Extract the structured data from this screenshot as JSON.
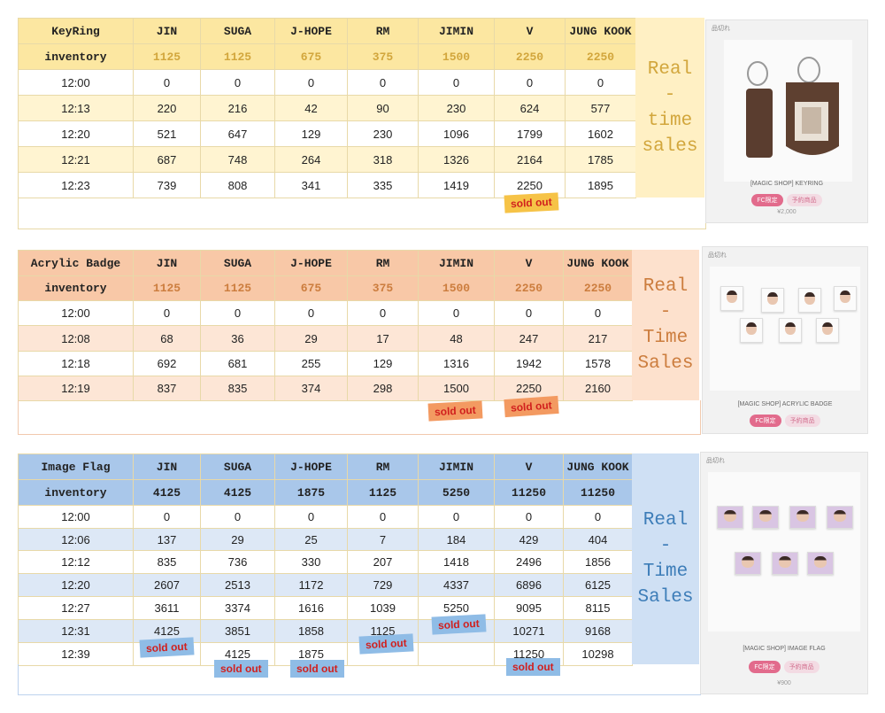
{
  "columns": [
    "JIN",
    "SUGA",
    "J-HOPE",
    "RM",
    "JIMIN",
    "V",
    "JUNG KOOK"
  ],
  "inventory_label": "inventory",
  "side_label_1": [
    "Real",
    "-",
    "time",
    "sales"
  ],
  "side_label_2": [
    "Real",
    "-",
    "Time",
    "Sales"
  ],
  "sold_out_label": "sold out",
  "tables": [
    {
      "title": "KeyRing",
      "inventory": [
        "1125",
        "1125",
        "675",
        "375",
        "1500",
        "2250",
        "2250"
      ],
      "rows": [
        {
          "time": "12:00",
          "values": [
            "0",
            "0",
            "0",
            "0",
            "0",
            "0",
            "0"
          ]
        },
        {
          "time": "12:13",
          "values": [
            "220",
            "216",
            "42",
            "90",
            "230",
            "624",
            "577"
          ]
        },
        {
          "time": "12:20",
          "values": [
            "521",
            "647",
            "129",
            "230",
            "1096",
            "1799",
            "1602"
          ]
        },
        {
          "time": "12:21",
          "values": [
            "687",
            "748",
            "264",
            "318",
            "1326",
            "2164",
            "1785"
          ]
        },
        {
          "time": "12:23",
          "values": [
            "739",
            "808",
            "341",
            "335",
            "1419",
            "2250",
            "1895"
          ]
        }
      ]
    },
    {
      "title": "Acrylic Badge",
      "inventory": [
        "1125",
        "1125",
        "675",
        "375",
        "1500",
        "2250",
        "2250"
      ],
      "rows": [
        {
          "time": "12:00",
          "values": [
            "0",
            "0",
            "0",
            "0",
            "0",
            "0",
            "0"
          ]
        },
        {
          "time": "12:08",
          "values": [
            "68",
            "36",
            "29",
            "17",
            "48",
            "247",
            "217"
          ]
        },
        {
          "time": "12:18",
          "values": [
            "692",
            "681",
            "255",
            "129",
            "1316",
            "1942",
            "1578"
          ]
        },
        {
          "time": "12:19",
          "values": [
            "837",
            "835",
            "374",
            "298",
            "1500",
            "2250",
            "2160"
          ]
        }
      ]
    },
    {
      "title": "Image Flag",
      "inventory": [
        "4125",
        "4125",
        "1875",
        "1125",
        "5250",
        "11250",
        "11250"
      ],
      "rows": [
        {
          "time": "12:00",
          "values": [
            "0",
            "0",
            "0",
            "0",
            "0",
            "0",
            "0"
          ]
        },
        {
          "time": "12:06",
          "values": [
            "137",
            "29",
            "25",
            "7",
            "184",
            "429",
            "404"
          ]
        },
        {
          "time": "12:12",
          "values": [
            "835",
            "736",
            "330",
            "207",
            "1418",
            "2496",
            "1856"
          ]
        },
        {
          "time": "12:20",
          "values": [
            "2607",
            "2513",
            "1172",
            "729",
            "4337",
            "6896",
            "6125"
          ]
        },
        {
          "time": "12:27",
          "values": [
            "3611",
            "3374",
            "1616",
            "1039",
            "5250",
            "9095",
            "8115"
          ]
        },
        {
          "time": "12:31",
          "values": [
            "4125",
            "3851",
            "1858",
            "1125",
            "",
            "10271",
            "9168"
          ]
        },
        {
          "time": "12:39",
          "values": [
            "",
            "4125",
            "1875",
            "",
            "",
            "11250",
            "10298"
          ]
        }
      ]
    }
  ],
  "products": [
    {
      "tag": "品切れ",
      "name": "[MAGIC SHOP] KEYRING",
      "badge_fc": "FC限定",
      "badge_order": "予約商品",
      "price": "¥2,000"
    },
    {
      "tag": "品切れ",
      "name": "[MAGIC SHOP] ACRYLIC BADGE",
      "badge_fc": "FC限定",
      "badge_order": "予約商品"
    },
    {
      "tag": "品切れ",
      "name": "[MAGIC SHOP] IMAGE FLAG",
      "badge_fc": "FC限定",
      "badge_order": "予約商品",
      "price": "¥900"
    }
  ],
  "colors": {
    "yellow_header": "#fce7a1",
    "yellow_band": "#fff4d1",
    "yellow_side": "#fff0c4",
    "yellow_text": "#d2a63c",
    "orange_header": "#f8c8a7",
    "orange_band": "#fde6d6",
    "orange_side": "#fde1cd",
    "orange_text": "#cc7d3e",
    "blue_header": "#a9c7ea",
    "blue_band": "#dde8f6",
    "blue_side": "#cfe0f4",
    "blue_text": "#3d7db8",
    "soldout_yellow": "#f6c347",
    "soldout_orange": "#f39a61",
    "soldout_blue": "#8fbce6"
  }
}
